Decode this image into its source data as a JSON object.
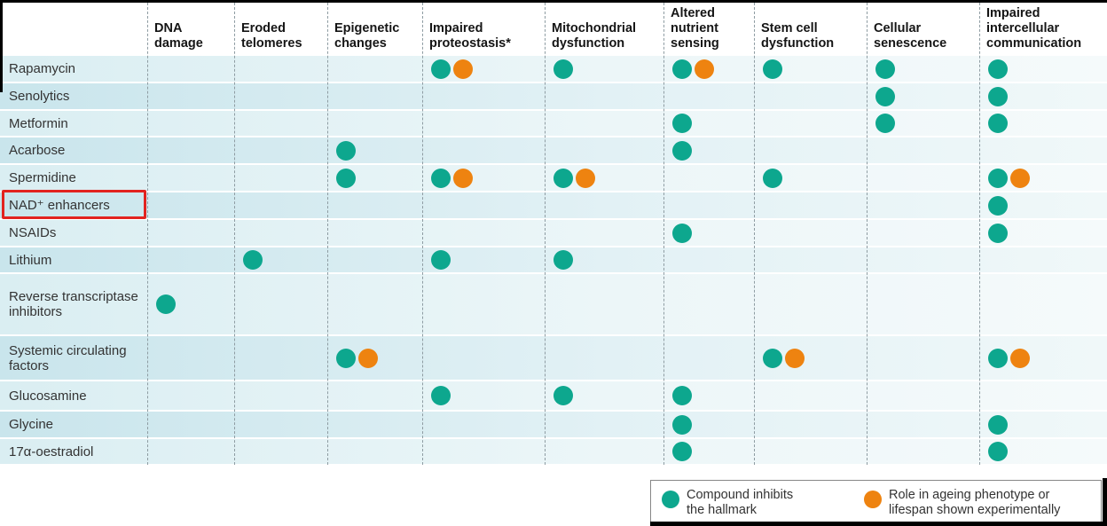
{
  "chart_data": {
    "type": "heatmap",
    "title": "",
    "rows": [
      "Rapamycin",
      "Senolytics",
      "Metformin",
      "Acarbose",
      "Spermidine",
      "NAD⁺ enhancers",
      "NSAIDs",
      "Lithium",
      "Reverse transcriptase inhibitors",
      "Systemic circulating factors",
      "Glucosamine",
      "Glycine",
      "17α-oestradiol"
    ],
    "columns": [
      "DNA damage",
      "Eroded telomeres",
      "Epigenetic changes",
      "Impaired proteostasis*",
      "Mitochondrial dysfunction",
      "Altered nutrient sensing",
      "Stem cell dysfunction",
      "Cellular senescence",
      "Impaired intercellular communication"
    ],
    "value_legend": {
      "0": "no mark",
      "1": "compound inhibits the hallmark (teal dot)",
      "2": "inhibits hallmark + role in ageing phenotype or lifespan shown experimentally (teal + orange dots)"
    },
    "matrix": [
      [
        0,
        0,
        0,
        2,
        1,
        2,
        1,
        1,
        1
      ],
      [
        0,
        0,
        0,
        0,
        0,
        0,
        0,
        1,
        1
      ],
      [
        0,
        0,
        0,
        0,
        0,
        1,
        0,
        1,
        1
      ],
      [
        0,
        0,
        1,
        0,
        0,
        1,
        0,
        0,
        0
      ],
      [
        0,
        0,
        1,
        2,
        2,
        0,
        1,
        0,
        2
      ],
      [
        0,
        0,
        0,
        0,
        0,
        0,
        0,
        0,
        1
      ],
      [
        0,
        0,
        0,
        0,
        0,
        1,
        0,
        0,
        1
      ],
      [
        0,
        1,
        0,
        1,
        1,
        0,
        0,
        0,
        0
      ],
      [
        1,
        0,
        0,
        0,
        0,
        0,
        0,
        0,
        0
      ],
      [
        0,
        0,
        2,
        0,
        0,
        0,
        2,
        0,
        2
      ],
      [
        0,
        0,
        0,
        1,
        1,
        1,
        0,
        0,
        0
      ],
      [
        0,
        0,
        0,
        0,
        0,
        1,
        0,
        0,
        1
      ],
      [
        0,
        0,
        0,
        0,
        0,
        1,
        0,
        0,
        1
      ]
    ],
    "legend_position": "bottom-right",
    "highlighted_row": "NAD⁺ enhancers"
  },
  "column_header_lines": [
    "DNA\ndamage",
    "Eroded\ntelomeres",
    "Epigenetic\nchanges",
    "Impaired\nproteostasis*",
    "Mitochondrial\ndysfunction",
    "Altered\nnutrient\nsensing",
    "Stem cell\ndysfunction",
    "Cellular\nsenescence",
    "Impaired\nintercellular\ncommunication"
  ],
  "legend": {
    "items": [
      {
        "icon": "teal-dot-icon",
        "color": "#0da78e",
        "label": "Compound inhibits\nthe hallmark"
      },
      {
        "icon": "orange-dot-icon",
        "color": "#ee8310",
        "label": "Role in ageing phenotype or\nlifespan shown experimentally"
      }
    ]
  },
  "colors": {
    "inhibits_dot": "#0da78e",
    "experimental_dot": "#ee8310",
    "highlight_box": "#e2231f",
    "row_tint_light": "#daeef2",
    "row_tint_dark": "#c9e5ec"
  }
}
